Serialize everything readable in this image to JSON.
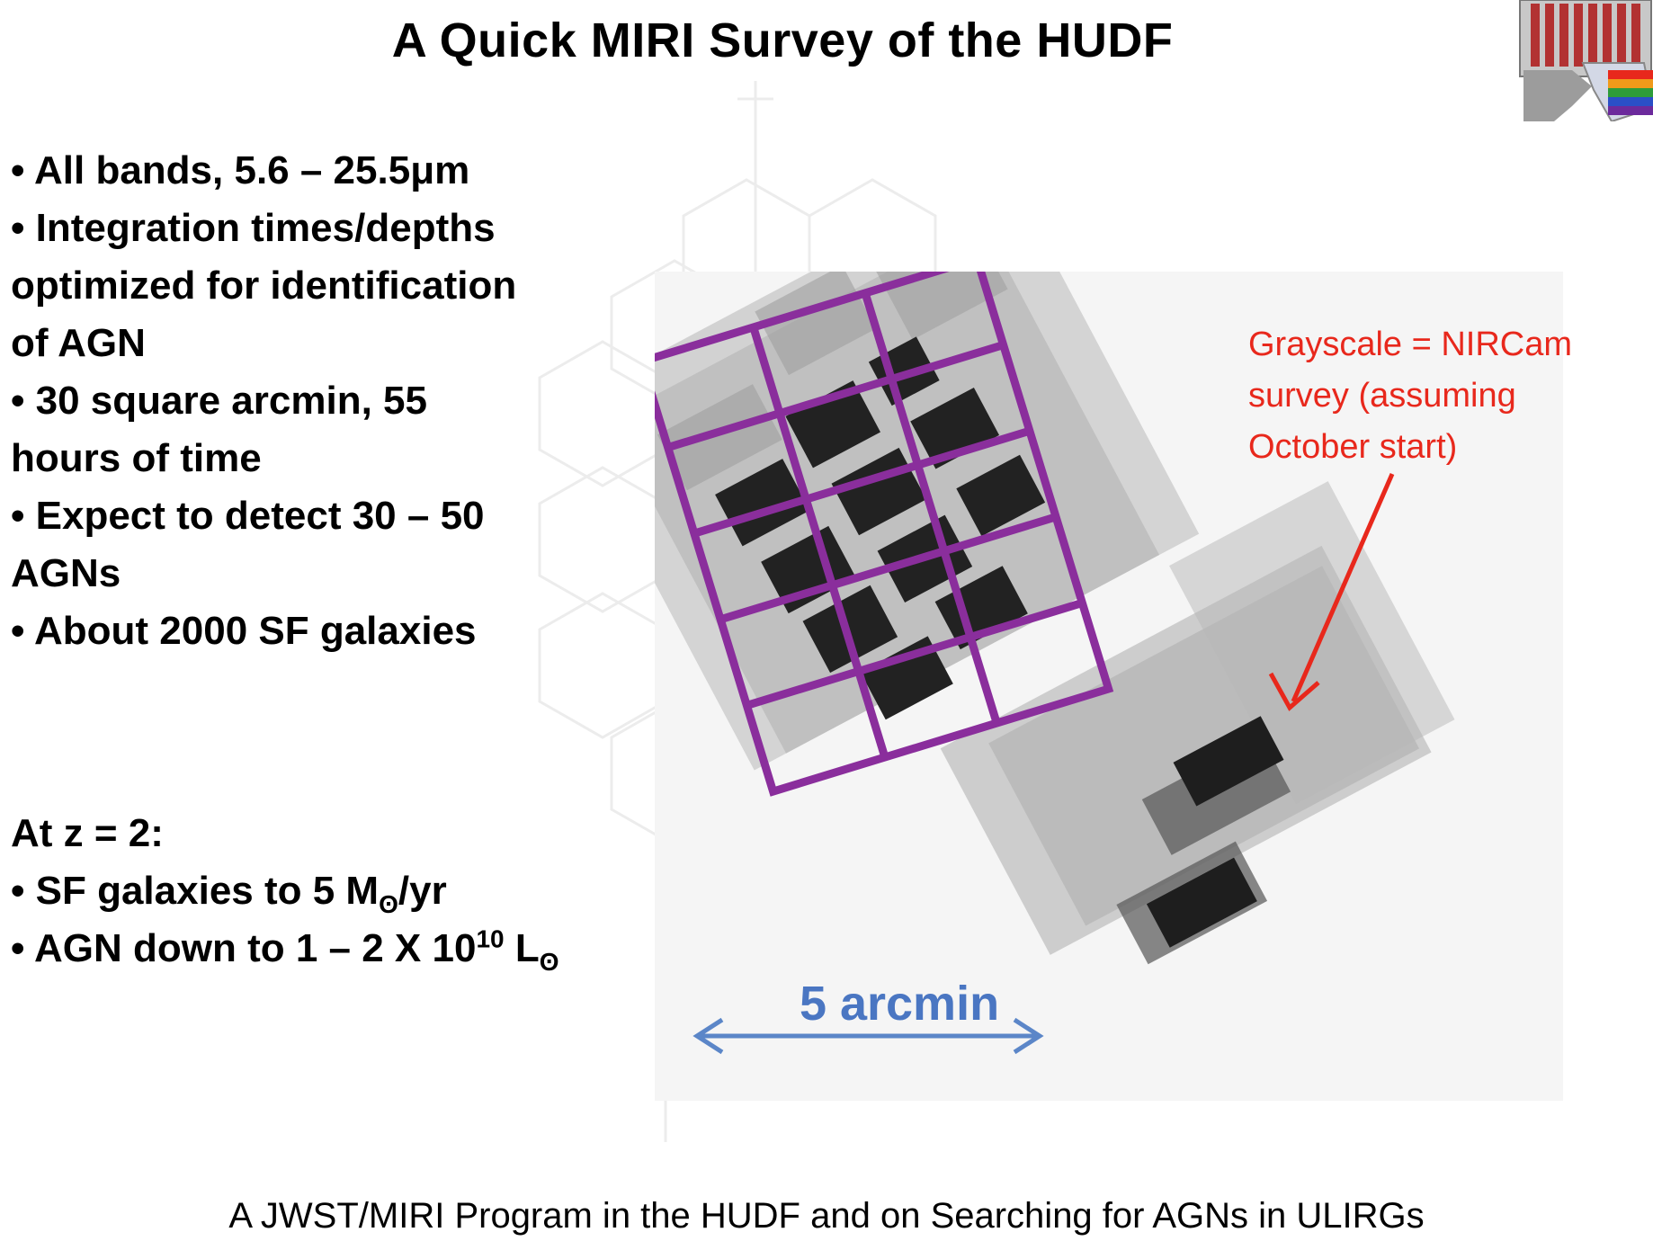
{
  "slide": {
    "title": "A Quick MIRI Survey of the HUDF",
    "bullets": {
      "b1": "• All bands, 5.6 – 25.5μm",
      "b2a": "• Integration  times/depths",
      "b2b": "optimized for identification",
      "b2c": "of AGN",
      "b3a": "• 30 square arcmin, 55",
      "b3b": "hours of time",
      "b4a": "• Expect to detect 30 – 50",
      "b4b": "AGNs",
      "b5": "• About 2000 SF galaxies"
    },
    "at_z": {
      "heading": "At z = 2:",
      "line1_prefix": "•  SF galaxies to 5 M",
      "line1_sub": "ʘ",
      "line1_suffix": "/yr",
      "line2_prefix": "• AGN down to 1 – 2 X 10",
      "line2_sup": "10",
      "line2_mid": " L",
      "line2_sub": "ʘ"
    },
    "figure": {
      "annotation": {
        "line1": "Grayscale = NIRCam",
        "line2": "survey (assuming",
        "line3": "October start)"
      },
      "scale_label": "5 arcmin",
      "colors": {
        "miri_grid": "#8a2e9c",
        "annotation": "#e8281c",
        "scale_arrow": "#5b86c8"
      }
    },
    "footer": "A JWST/MIRI Program in the HUDF and on Searching for AGNs in ULIRGs",
    "icons": {
      "logo": "miri-instrument-logo",
      "arrow": "red-arrow-icon",
      "scale": "double-arrow-icon"
    }
  }
}
